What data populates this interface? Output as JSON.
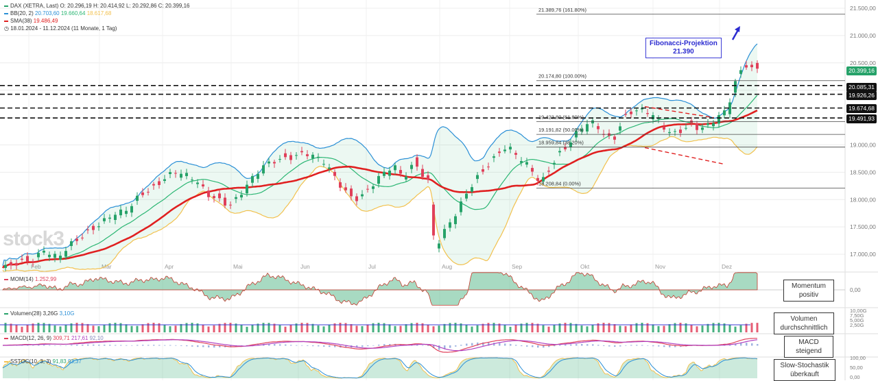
{
  "header": {
    "line1": "DAX (XETRA, Last)  O: 20.296,19  H: 20.414,92  L: 20.292,86  C: 20.399,16",
    "bb": "BB(20, 2)",
    "bb_vals_mid": "20.703,60",
    "bb_vals_low": "19.660,64",
    "bb_vals_low2": "18.617,68",
    "sma": "SMA(38)",
    "sma_val": "19.486,49",
    "range": "18.01.2024 - 11.12.2024",
    "range_note": "(11 Monate, 1 Tag)"
  },
  "logo": "stock3",
  "fibonacci_box": {
    "line1": "Fibonacci-Projektion",
    "line2": "21.390"
  },
  "annotations": {
    "momentum": [
      "Momentum",
      "positiv"
    ],
    "volumen": [
      "Volumen",
      "durchschnittlich"
    ],
    "macd": [
      "MACD",
      "steigend"
    ],
    "stoch": [
      "Slow-Stochastik",
      "überkauft"
    ]
  },
  "price_pills": {
    "last": "20.399,16",
    "l1": "20.085,31",
    "l2": "19.926,26",
    "l3": "19.674,68",
    "l4": "19.491,93"
  },
  "indicator_labels": {
    "mom": "MOM(14)",
    "mom_val": "1.252,99",
    "vol": "Volumen(28)",
    "vol_a": "3,26G",
    "vol_b": "3,10G",
    "macd": "MACD(12, 26, 9)",
    "macd_a": "309,71",
    "macd_b": "217,61",
    "macd_c": "92,10",
    "sstoc": "SSTOC(10, 3, 3)",
    "sstoc_a": "91,83",
    "sstoc_b": "93,37"
  },
  "colors": {
    "up": "#26a269",
    "down": "#e0405a",
    "bb_upper": "#2a8fd6",
    "bb_mid": "#2bb673",
    "bb_lower": "#f2c14e",
    "sma": "#e02020",
    "fib_blue": "#2b2bd0"
  },
  "chart_data": {
    "type": "candlestick",
    "instrument": "DAX (XETRA, Last)",
    "ylim": [
      16700,
      21650
    ],
    "y_ticks": [
      "17.000,00",
      "17.500,00",
      "18.000,00",
      "18.500,00",
      "19.000,00",
      "19.500,00",
      "20.000,00",
      "20.500,00",
      "21.000,00",
      "21.500,00"
    ],
    "y_tick_values": [
      17000,
      17500,
      18000,
      18500,
      19000,
      19500,
      20000,
      20500,
      21000,
      21500
    ],
    "x_labels": [
      "Feb",
      "Mär",
      "Apr",
      "Mai",
      "Jun",
      "Jul",
      "Aug",
      "Sep",
      "Okt",
      "Nov",
      "Dez"
    ],
    "fib_levels": [
      {
        "label": "21.389,76 (161.80%)",
        "value": 21389.76
      },
      {
        "label": "20.174,80 (100.00%)",
        "value": 20174.8
      },
      {
        "label": "19.423,80 (61.80%)",
        "value": 19423.8
      },
      {
        "label": "19.191,82 (50.00%)",
        "value": 19191.82
      },
      {
        "label": "18.959,84 (38.20%)",
        "value": 18959.84
      },
      {
        "label": "18.208,84 (0.00%)",
        "value": 18208.84
      }
    ],
    "horizontal_levels": [
      20085.31,
      19926.26,
      19674.68,
      19491.93
    ],
    "close_path": [
      [
        0,
        16750
      ],
      [
        8,
        16850
      ],
      [
        15,
        16900
      ],
      [
        22,
        16900
      ],
      [
        30,
        17050
      ],
      [
        40,
        16900
      ],
      [
        50,
        17200
      ],
      [
        60,
        17400
      ],
      [
        70,
        17550
      ],
      [
        80,
        17700
      ],
      [
        88,
        17750
      ],
      [
        93,
        17850
      ],
      [
        100,
        18100
      ],
      [
        110,
        18250
      ],
      [
        118,
        18400
      ],
      [
        125,
        18500
      ],
      [
        130,
        18450
      ],
      [
        140,
        18350
      ],
      [
        150,
        18100
      ],
      [
        160,
        18000
      ],
      [
        165,
        17900
      ],
      [
        172,
        18050
      ],
      [
        180,
        18300
      ],
      [
        190,
        18600
      ],
      [
        200,
        18750
      ],
      [
        210,
        18800
      ],
      [
        220,
        18850
      ],
      [
        228,
        18750
      ],
      [
        235,
        18650
      ],
      [
        245,
        18300
      ],
      [
        255,
        18050
      ],
      [
        260,
        18050
      ],
      [
        267,
        18200
      ],
      [
        275,
        18400
      ],
      [
        285,
        18600
      ],
      [
        292,
        18400
      ],
      [
        300,
        18700
      ],
      [
        310,
        18350
      ],
      [
        315,
        17100
      ],
      [
        322,
        17400
      ],
      [
        330,
        17700
      ],
      [
        338,
        18100
      ],
      [
        345,
        18400
      ],
      [
        355,
        18700
      ],
      [
        365,
        18950
      ],
      [
        370,
        18900
      ],
      [
        378,
        18700
      ],
      [
        385,
        18550
      ],
      [
        392,
        18300
      ],
      [
        400,
        18650
      ],
      [
        405,
        18850
      ],
      [
        412,
        19000
      ],
      [
        420,
        19250
      ],
      [
        428,
        19400
      ],
      [
        432,
        19350
      ],
      [
        438,
        19200
      ],
      [
        445,
        19100
      ],
      [
        452,
        19500
      ],
      [
        460,
        19650
      ],
      [
        468,
        19600
      ],
      [
        475,
        19500
      ],
      [
        482,
        19300
      ],
      [
        488,
        19200
      ],
      [
        495,
        19300
      ],
      [
        502,
        19400
      ],
      [
        508,
        19300
      ],
      [
        515,
        19350
      ],
      [
        522,
        19500
      ],
      [
        528,
        19600
      ],
      [
        533,
        20100
      ],
      [
        537,
        20300
      ],
      [
        541,
        20500
      ],
      [
        545,
        20450
      ],
      [
        550,
        20399
      ]
    ],
    "series": [
      {
        "name": "BB(20, 2)"
      },
      {
        "name": "SMA(38)"
      }
    ],
    "legend_values": {
      "last": {
        "O": 20296.19,
        "H": 20414.92,
        "L": 20292.86,
        "C": 20399.16
      },
      "sma38": 19486.49
    },
    "indicator_y_ticks": {
      "mom": [
        "0,00"
      ],
      "volume": [
        "10,00G",
        "7,50G",
        "5,00G",
        "2,50G"
      ],
      "sstoc": [
        "100,00",
        "50,00",
        "0,00"
      ]
    }
  }
}
